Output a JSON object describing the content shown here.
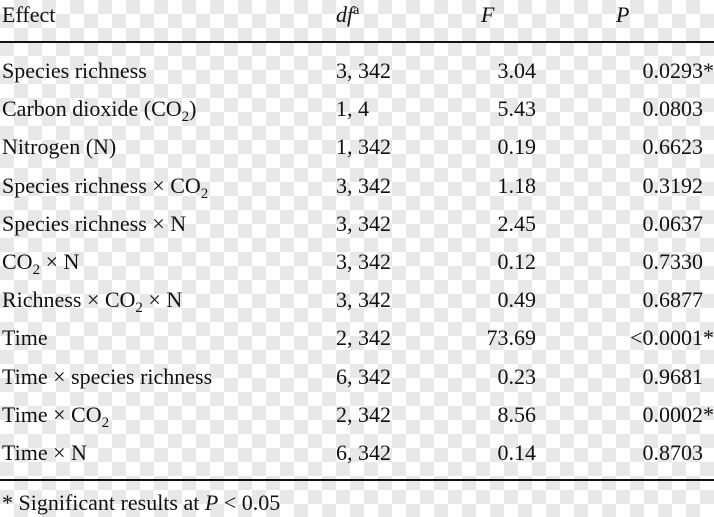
{
  "header": {
    "effect": "Effect",
    "df": {
      "text": "df",
      "sup": "a"
    },
    "F": "F",
    "P": "P"
  },
  "rows": [
    {
      "effect": [
        "Species richness"
      ],
      "df": "3, 342",
      "F": "3.04",
      "P": {
        "text": "0.0293",
        "note": "*"
      }
    },
    {
      "effect": [
        "Carbon dioxide (CO",
        {
          "sub": "2"
        },
        ")"
      ],
      "df": "1, 4",
      "F": "5.43",
      "P": {
        "text": "0.0803"
      }
    },
    {
      "effect": [
        "Nitrogen (N)"
      ],
      "df": "1, 342",
      "F": "0.19",
      "P": {
        "text": "0.6623"
      }
    },
    {
      "effect": [
        "Species richness × CO",
        {
          "sub": "2"
        }
      ],
      "df": "3, 342",
      "F": "1.18",
      "P": {
        "text": "0.3192"
      }
    },
    {
      "effect": [
        "Species richness × N"
      ],
      "df": "3, 342",
      "F": "2.45",
      "P": {
        "text": "0.0637"
      }
    },
    {
      "effect": [
        "CO",
        {
          "sub": "2"
        },
        " × N"
      ],
      "df": "3, 342",
      "F": "0.12",
      "P": {
        "text": "0.7330"
      }
    },
    {
      "effect": [
        "Richness × CO",
        {
          "sub": "2"
        },
        " × N"
      ],
      "df": "3, 342",
      "F": "0.49",
      "P": {
        "text": "0.6877"
      }
    },
    {
      "effect": [
        "Time"
      ],
      "df": "2, 342",
      "F": "73.69",
      "P": {
        "text": "<0.0001",
        "note": "*"
      }
    },
    {
      "effect": [
        "Time × species richness"
      ],
      "df": "6, 342",
      "F": "0.23",
      "P": {
        "text": "0.9681"
      }
    },
    {
      "effect": [
        "Time × CO",
        {
          "sub": "2"
        }
      ],
      "df": "2, 342",
      "F": "8.56",
      "P": {
        "text": "0.0002",
        "note": "*"
      }
    },
    {
      "effect": [
        "Time × N"
      ],
      "df": "6, 342",
      "F": "0.14",
      "P": {
        "text": "0.8703"
      }
    }
  ],
  "footnote": [
    "* Significant results at ",
    {
      "italic": "P"
    },
    " < 0.05"
  ]
}
